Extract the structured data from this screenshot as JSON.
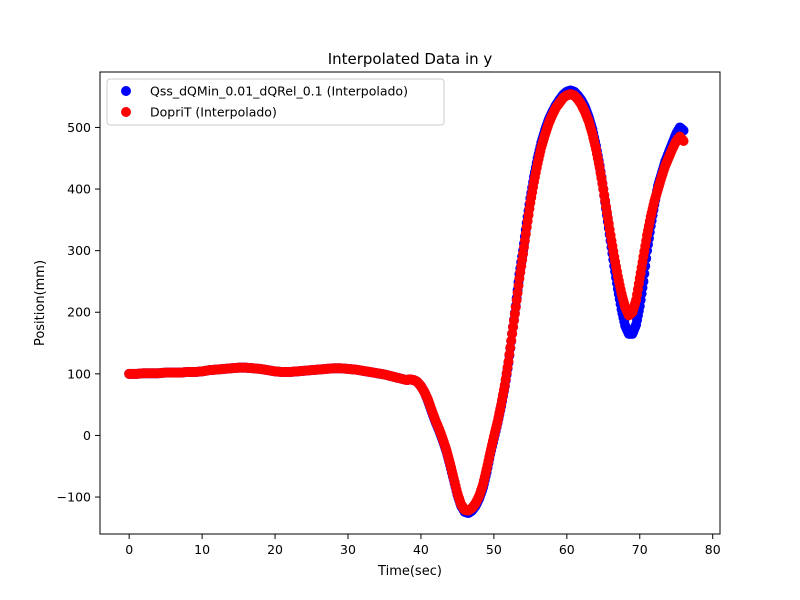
{
  "chart_data": {
    "type": "scatter",
    "title": "Interpolated Data in y",
    "xlabel": "Time(sec)",
    "ylabel": "Position(mm)",
    "xlim": [
      -4,
      81
    ],
    "ylim": [
      -160,
      590
    ],
    "xticks": [
      0,
      10,
      20,
      30,
      40,
      50,
      60,
      70,
      80
    ],
    "yticks": [
      -100,
      0,
      100,
      200,
      300,
      400,
      500
    ],
    "grid": false,
    "legend_position": "top-left",
    "series": [
      {
        "name": "Qss_dQMin_0.01_dQRel_0.1 (Interpolado)",
        "color": "#0000ff",
        "marker": "circle",
        "points": [
          [
            0,
            100
          ],
          [
            1,
            100
          ],
          [
            2,
            101
          ],
          [
            3,
            101
          ],
          [
            4,
            101
          ],
          [
            5,
            102
          ],
          [
            6,
            102
          ],
          [
            7,
            102
          ],
          [
            8,
            103
          ],
          [
            9,
            103
          ],
          [
            10,
            104
          ],
          [
            11,
            106
          ],
          [
            12,
            107
          ],
          [
            13,
            108
          ],
          [
            14,
            109
          ],
          [
            15,
            110
          ],
          [
            16,
            110
          ],
          [
            17,
            109
          ],
          [
            18,
            108
          ],
          [
            19,
            106
          ],
          [
            20,
            104
          ],
          [
            21,
            103
          ],
          [
            22,
            103
          ],
          [
            23,
            104
          ],
          [
            24,
            105
          ],
          [
            25,
            106
          ],
          [
            26,
            107
          ],
          [
            27,
            108
          ],
          [
            28,
            109
          ],
          [
            29,
            109
          ],
          [
            30,
            108
          ],
          [
            31,
            107
          ],
          [
            32,
            105
          ],
          [
            33,
            103
          ],
          [
            34,
            101
          ],
          [
            35,
            99
          ],
          [
            36,
            96
          ],
          [
            37,
            93
          ],
          [
            38,
            90
          ],
          [
            38.5,
            91
          ],
          [
            39,
            90
          ],
          [
            39.5,
            87
          ],
          [
            40,
            80
          ],
          [
            40.5,
            70
          ],
          [
            41,
            55
          ],
          [
            41.5,
            38
          ],
          [
            42,
            22
          ],
          [
            42.5,
            8
          ],
          [
            43,
            -8
          ],
          [
            43.5,
            -26
          ],
          [
            44,
            -48
          ],
          [
            44.5,
            -72
          ],
          [
            45,
            -96
          ],
          [
            45.5,
            -114
          ],
          [
            46,
            -124
          ],
          [
            46.5,
            -126
          ],
          [
            47,
            -122
          ],
          [
            47.5,
            -114
          ],
          [
            48,
            -102
          ],
          [
            48.5,
            -85
          ],
          [
            49,
            -60
          ],
          [
            49.5,
            -30
          ],
          [
            50,
            -5
          ],
          [
            50.5,
            20
          ],
          [
            51,
            48
          ],
          [
            51.5,
            80
          ],
          [
            52,
            118
          ],
          [
            52.5,
            165
          ],
          [
            53,
            210
          ],
          [
            53.5,
            262
          ],
          [
            54,
            300
          ],
          [
            54.5,
            345
          ],
          [
            55,
            385
          ],
          [
            55.5,
            420
          ],
          [
            56,
            450
          ],
          [
            56.5,
            475
          ],
          [
            57,
            495
          ],
          [
            57.5,
            512
          ],
          [
            58,
            525
          ],
          [
            58.5,
            536
          ],
          [
            59,
            545
          ],
          [
            59.5,
            553
          ],
          [
            60,
            558
          ],
          [
            60.5,
            560
          ],
          [
            61,
            558
          ],
          [
            61.5,
            552
          ],
          [
            62,
            544
          ],
          [
            62.5,
            533
          ],
          [
            63,
            517
          ],
          [
            63.5,
            497
          ],
          [
            64,
            470
          ],
          [
            64.5,
            438
          ],
          [
            65,
            400
          ],
          [
            65.5,
            358
          ],
          [
            66,
            316
          ],
          [
            66.5,
            275
          ],
          [
            67,
            238
          ],
          [
            67.5,
            205
          ],
          [
            68,
            178
          ],
          [
            68.5,
            165
          ],
          [
            69,
            165
          ],
          [
            69.5,
            180
          ],
          [
            70,
            210
          ],
          [
            70.5,
            250
          ],
          [
            71,
            300
          ],
          [
            71.5,
            340
          ],
          [
            72,
            375
          ],
          [
            72.5,
            405
          ],
          [
            73,
            425
          ],
          [
            73.5,
            445
          ],
          [
            74,
            460
          ],
          [
            74.5,
            475
          ],
          [
            75,
            490
          ],
          [
            75.5,
            500
          ],
          [
            76,
            495
          ]
        ]
      },
      {
        "name": "DopriT (Interpolado)",
        "color": "#ff0000",
        "marker": "circle",
        "points": [
          [
            0,
            100
          ],
          [
            1,
            100
          ],
          [
            2,
            101
          ],
          [
            3,
            101
          ],
          [
            4,
            101
          ],
          [
            5,
            102
          ],
          [
            6,
            102
          ],
          [
            7,
            102
          ],
          [
            8,
            103
          ],
          [
            9,
            103
          ],
          [
            10,
            104
          ],
          [
            11,
            106
          ],
          [
            12,
            107
          ],
          [
            13,
            108
          ],
          [
            14,
            109
          ],
          [
            15,
            110
          ],
          [
            16,
            110
          ],
          [
            17,
            109
          ],
          [
            18,
            108
          ],
          [
            19,
            106
          ],
          [
            20,
            104
          ],
          [
            21,
            103
          ],
          [
            22,
            103
          ],
          [
            23,
            104
          ],
          [
            24,
            105
          ],
          [
            25,
            106
          ],
          [
            26,
            107
          ],
          [
            27,
            108
          ],
          [
            28,
            109
          ],
          [
            29,
            109
          ],
          [
            30,
            108
          ],
          [
            31,
            107
          ],
          [
            32,
            105
          ],
          [
            33,
            103
          ],
          [
            34,
            101
          ],
          [
            35,
            99
          ],
          [
            36,
            96
          ],
          [
            37,
            93
          ],
          [
            38,
            90
          ],
          [
            38.5,
            91
          ],
          [
            39,
            90
          ],
          [
            39.5,
            87
          ],
          [
            40,
            80
          ],
          [
            40.5,
            70
          ],
          [
            41,
            57
          ],
          [
            41.5,
            40
          ],
          [
            42,
            24
          ],
          [
            42.5,
            10
          ],
          [
            43,
            -6
          ],
          [
            43.5,
            -24
          ],
          [
            44,
            -46
          ],
          [
            44.5,
            -70
          ],
          [
            45,
            -94
          ],
          [
            45.5,
            -112
          ],
          [
            46,
            -121
          ],
          [
            46.5,
            -122
          ],
          [
            47,
            -118
          ],
          [
            47.5,
            -110
          ],
          [
            48,
            -98
          ],
          [
            48.5,
            -80
          ],
          [
            49,
            -55
          ],
          [
            49.5,
            -28
          ],
          [
            50,
            -2
          ],
          [
            50.5,
            22
          ],
          [
            51,
            50
          ],
          [
            51.5,
            82
          ],
          [
            52,
            120
          ],
          [
            52.5,
            165
          ],
          [
            53,
            208
          ],
          [
            53.5,
            255
          ],
          [
            54,
            295
          ],
          [
            54.5,
            338
          ],
          [
            55,
            378
          ],
          [
            55.5,
            412
          ],
          [
            56,
            442
          ],
          [
            56.5,
            468
          ],
          [
            57,
            488
          ],
          [
            57.5,
            506
          ],
          [
            58,
            520
          ],
          [
            58.5,
            532
          ],
          [
            59,
            540
          ],
          [
            59.5,
            548
          ],
          [
            60,
            552
          ],
          [
            60.5,
            554
          ],
          [
            61,
            552
          ],
          [
            61.5,
            546
          ],
          [
            62,
            537
          ],
          [
            62.5,
            525
          ],
          [
            63,
            510
          ],
          [
            63.5,
            490
          ],
          [
            64,
            465
          ],
          [
            64.5,
            435
          ],
          [
            65,
            400
          ],
          [
            65.5,
            362
          ],
          [
            66,
            325
          ],
          [
            66.5,
            290
          ],
          [
            67,
            258
          ],
          [
            67.5,
            230
          ],
          [
            68,
            208
          ],
          [
            68.5,
            195
          ],
          [
            69,
            200
          ],
          [
            69.5,
            220
          ],
          [
            70,
            255
          ],
          [
            70.5,
            290
          ],
          [
            71,
            325
          ],
          [
            71.5,
            355
          ],
          [
            72,
            380
          ],
          [
            72.5,
            400
          ],
          [
            73,
            420
          ],
          [
            73.5,
            438
          ],
          [
            74,
            452
          ],
          [
            74.5,
            466
          ],
          [
            75,
            478
          ],
          [
            75.5,
            485
          ],
          [
            76,
            478
          ]
        ]
      }
    ]
  }
}
